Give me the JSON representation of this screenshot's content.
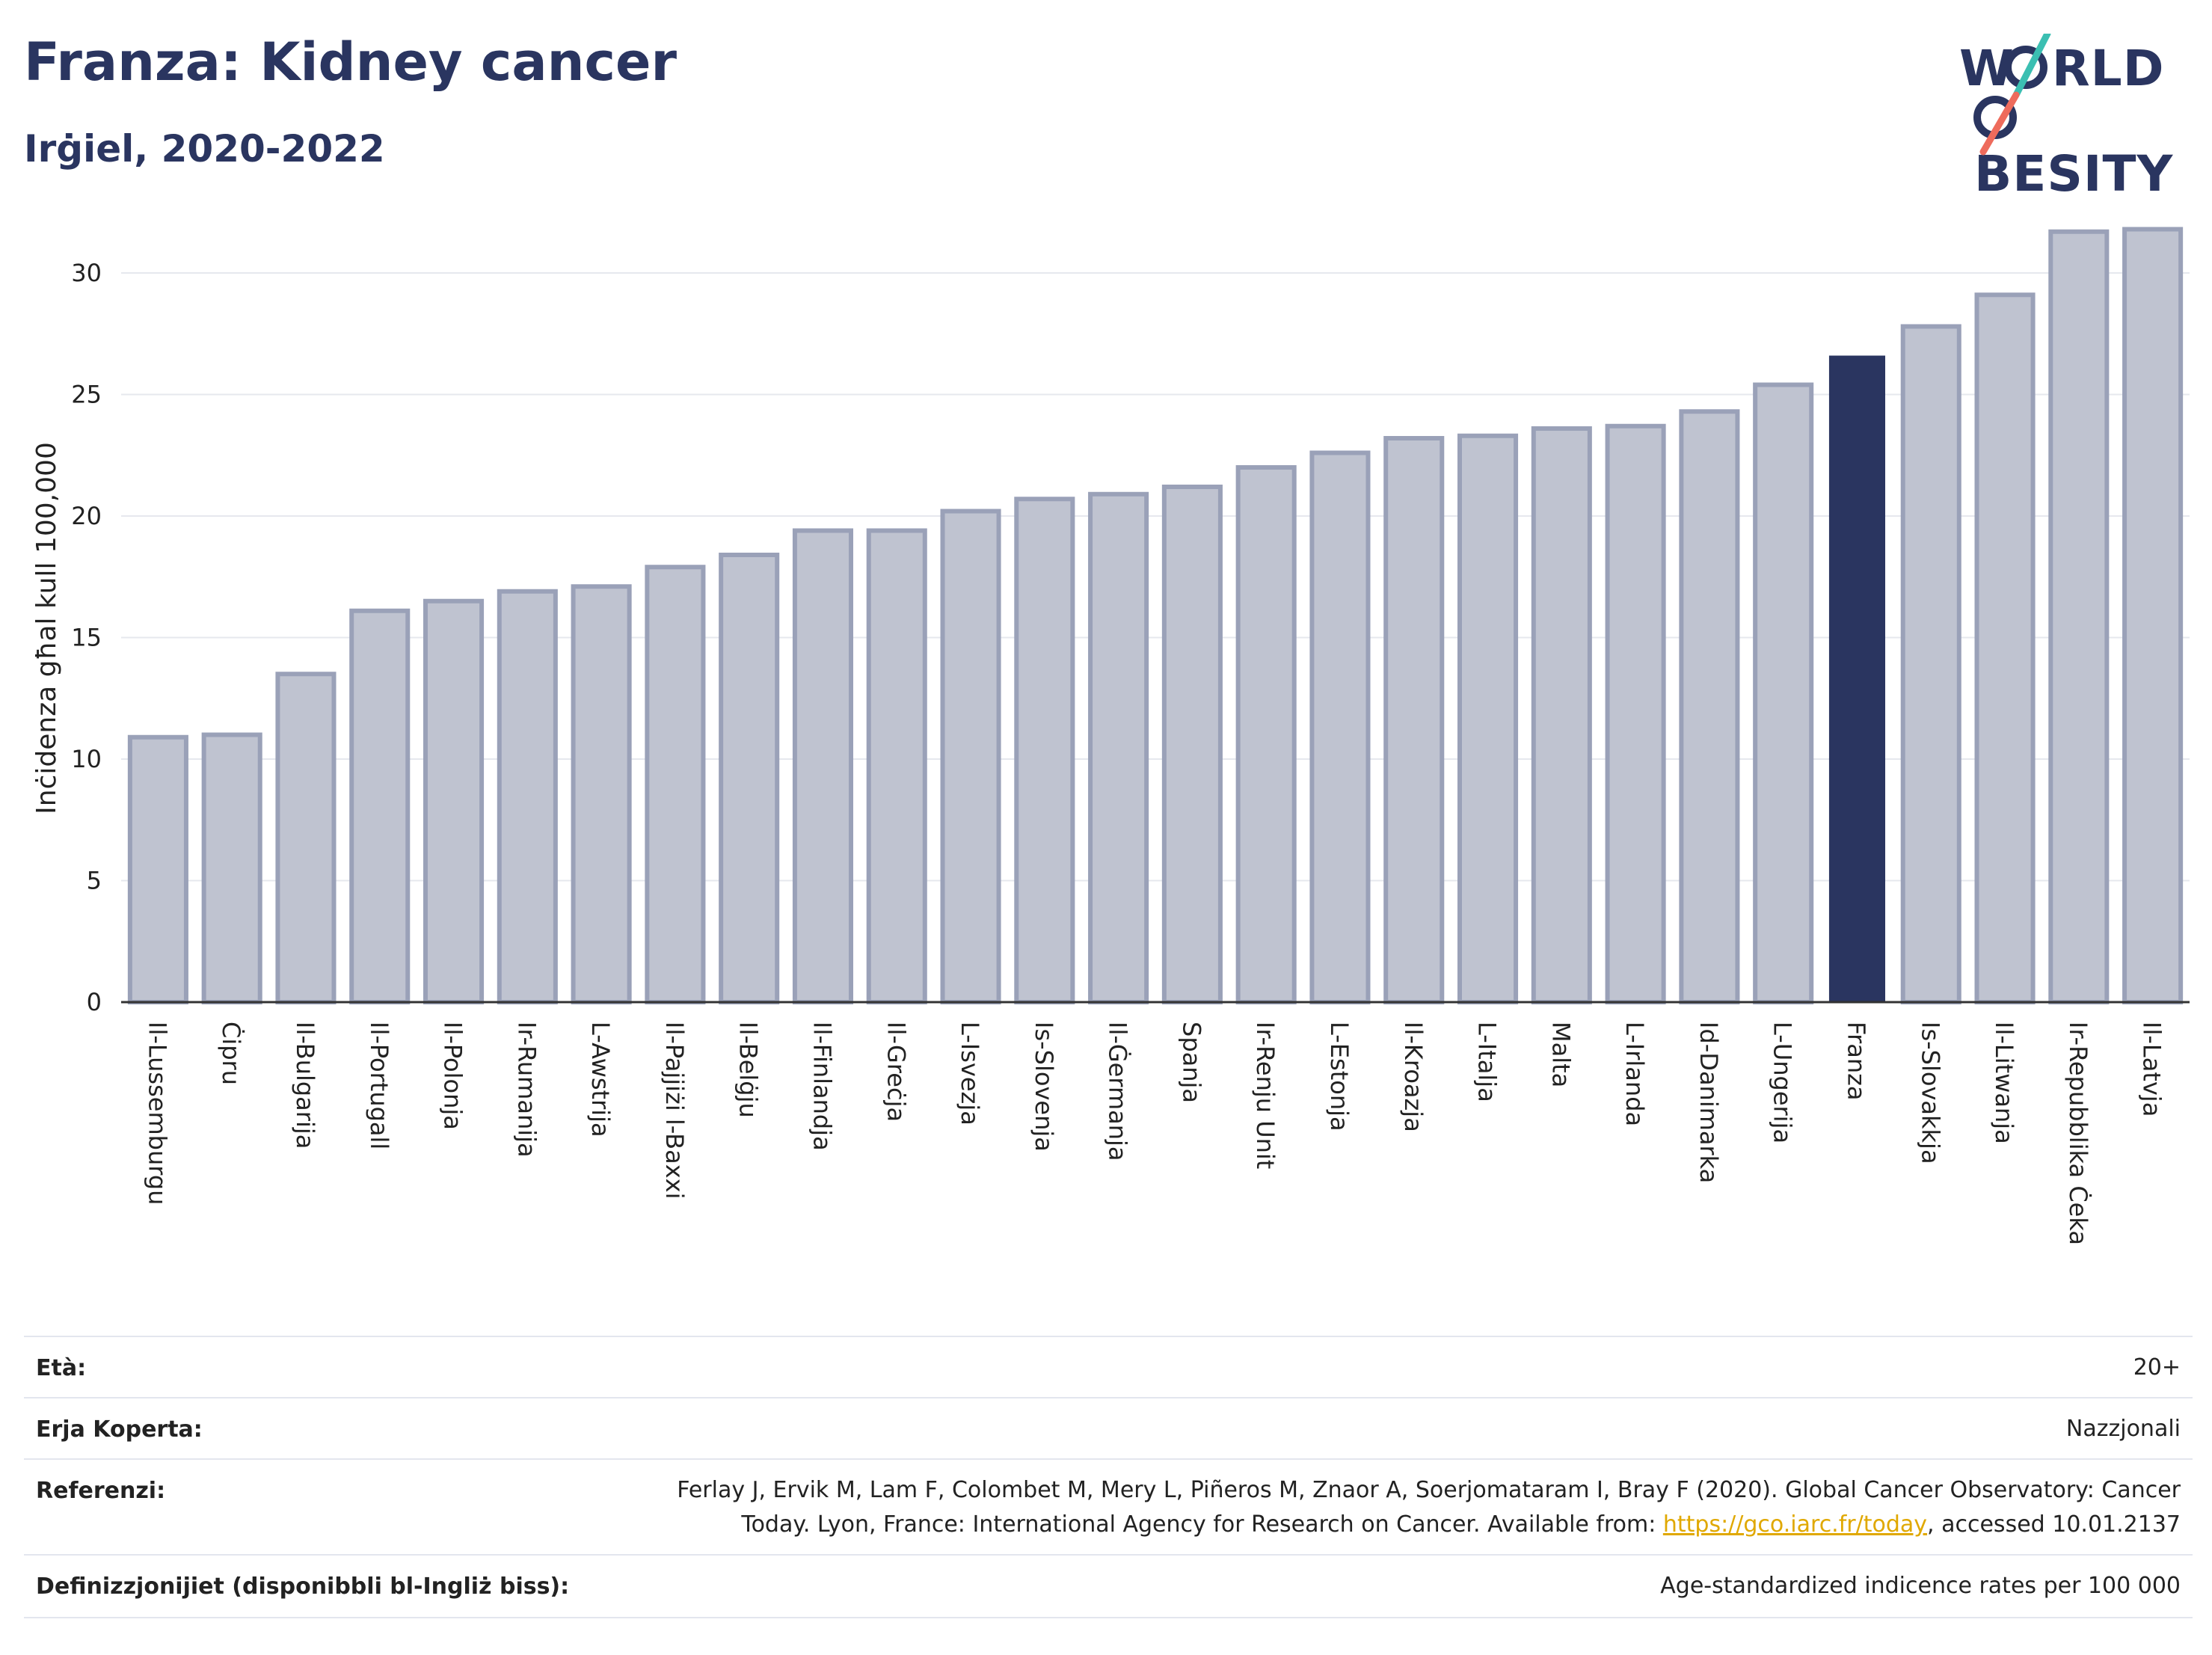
{
  "header": {
    "title": "Franza: Kidney cancer",
    "subtitle": "Irġiel, 2020-2022"
  },
  "logo": {
    "line1_a": "W",
    "line1_b": "RLD",
    "line2_b": "BESITY",
    "slash_colors": [
      "#3bbfb2",
      "#ee6b5c"
    ]
  },
  "chart_data": {
    "type": "bar",
    "ylabel": "Inċidenza għal kull 100,000",
    "xlabel": "",
    "ylim": [
      0,
      32
    ],
    "yticks": [
      0,
      5,
      10,
      15,
      20,
      25,
      30
    ],
    "grid": true,
    "highlight": "Franza",
    "colors": {
      "bar": "#bfc3d0",
      "bar_edge": "#9aa1b8",
      "highlight": "#2a3560"
    },
    "categories": [
      "Il-Lussemburgu",
      "Ċipru",
      "Il-Bulgarija",
      "Il-Portugall",
      "Il-Polonja",
      "Ir-Rumanija",
      "L-Awstrija",
      "Il-Pajjiżi l-Baxxi",
      "Il-Belġju",
      "Il-Finlandja",
      "Il-Greċja",
      "L-Isvezja",
      "Is-Slovenja",
      "Il-Ġermanja",
      "Spanja",
      "Ir-Renju Unit",
      "L-Estonja",
      "Il-Kroazja",
      "L-Italja",
      "Malta",
      "L-Irlanda",
      "Id-Danimarka",
      "L-Ungerija",
      "Franza",
      "Is-Slovakkja",
      "Il-Litwanja",
      "Ir-Repubblika Ċeka",
      "Il-Latvja"
    ],
    "values": [
      10.9,
      11.0,
      13.5,
      16.1,
      16.5,
      16.9,
      17.1,
      17.9,
      18.4,
      19.4,
      19.4,
      20.2,
      20.7,
      20.9,
      21.2,
      22.0,
      22.6,
      23.2,
      23.3,
      23.6,
      23.7,
      24.3,
      25.4,
      26.6,
      27.8,
      29.1,
      31.7,
      31.8
    ]
  },
  "meta": {
    "age_label": "Età:",
    "age_value": "20+",
    "area_label": "Erja Koperta:",
    "area_value": "Nazzjonali",
    "ref_label": "Referenzi:",
    "ref_line1": "Ferlay J, Ervik M, Lam F, Colombet M, Mery L, Piñeros M, Znaor A, Soerjomataram I, Bray F (2020). Global Cancer Observatory: Cancer",
    "ref_line2_pre": "Today. Lyon, France: International Agency for Research on Cancer. Available from: ",
    "ref_link": "https://gco.iarc.fr/today",
    "ref_line2_post": ", accessed 10.01.2137",
    "def_label": "Definizzjonijiet (disponibbli bl-Ingliż biss):",
    "def_value": "Age-standardized indicence rates per 100 000"
  }
}
